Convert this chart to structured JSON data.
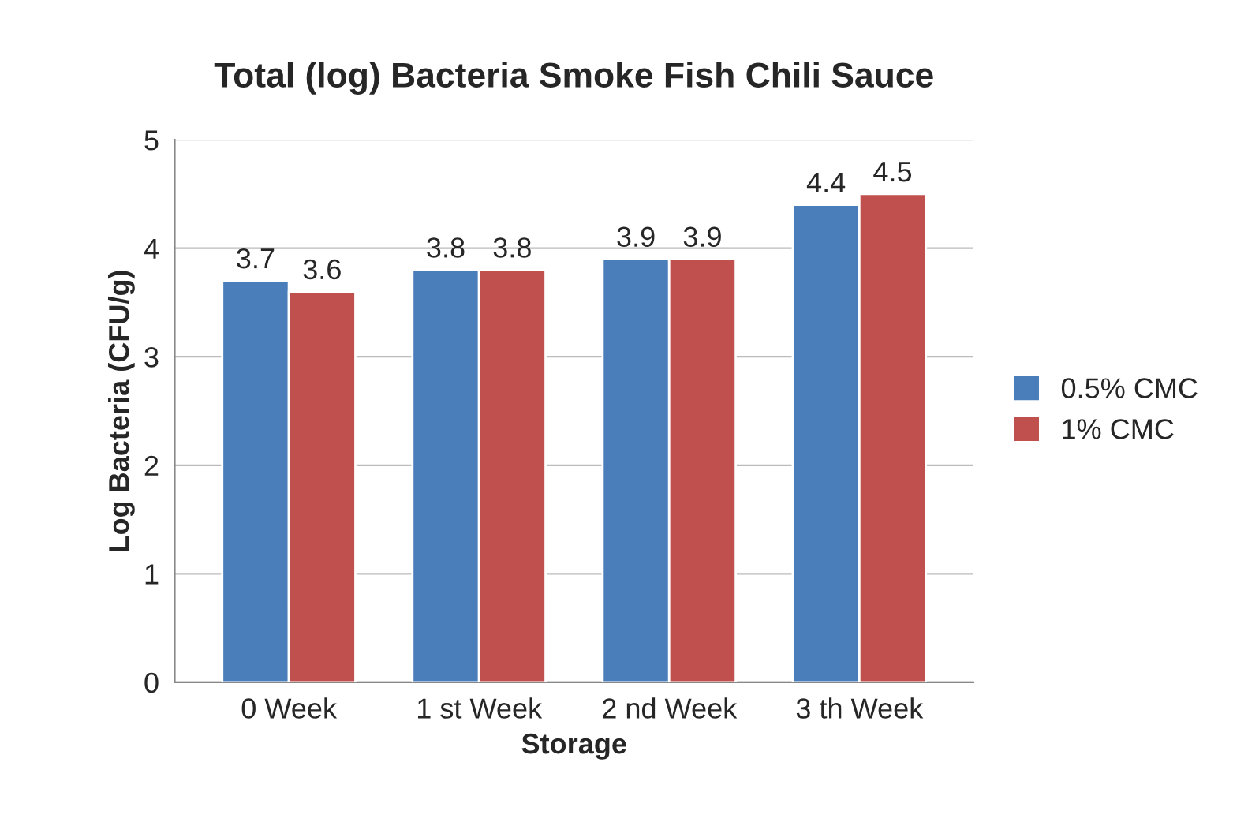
{
  "chart_data": {
    "type": "bar",
    "title": "Total (log) Bacteria Smoke Fish Chili Sauce",
    "xlabel": "Storage",
    "ylabel": "Log Bacteria (CFU/g)",
    "categories": [
      "0 Week",
      "1 st Week",
      "2 nd Week",
      "3 th Week"
    ],
    "series": [
      {
        "name": "0.5% CMC",
        "color": "#4a7ebb",
        "values": [
          3.7,
          3.8,
          3.9,
          4.4
        ]
      },
      {
        "name": "1% CMC",
        "color": "#c0504d",
        "values": [
          3.6,
          3.8,
          3.9,
          4.5
        ]
      }
    ],
    "ylim": [
      0,
      5
    ],
    "yticks": [
      0,
      1,
      2,
      3,
      4,
      5
    ],
    "grid": "y",
    "legend": "right",
    "data_labels": true
  }
}
